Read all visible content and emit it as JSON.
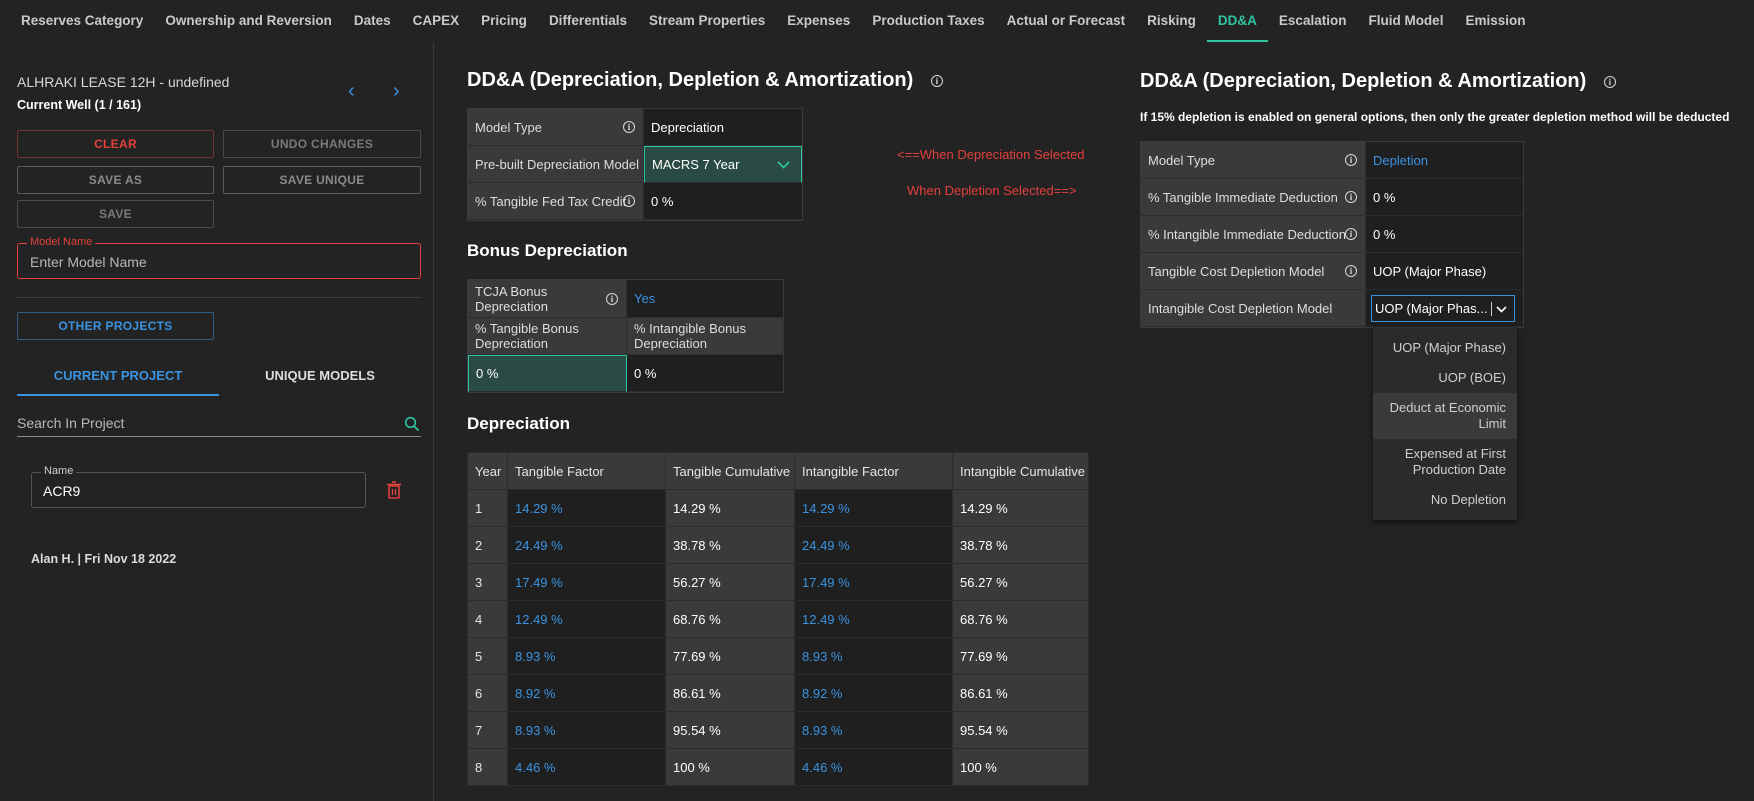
{
  "nav": {
    "tabs": [
      "Reserves Category",
      "Ownership and Reversion",
      "Dates",
      "CAPEX",
      "Pricing",
      "Differentials",
      "Stream Properties",
      "Expenses",
      "Production Taxes",
      "Actual or Forecast",
      "Risking",
      "DD&A",
      "Escalation",
      "Fluid Model",
      "Emission"
    ],
    "active": "DD&A"
  },
  "left": {
    "well_title": "ALHRAKI LEASE 12H - undefined",
    "current_well": "Current Well (1 / 161)",
    "buttons": {
      "clear": "CLEAR",
      "undo": "UNDO CHANGES",
      "save_as": "SAVE AS",
      "save_unique": "SAVE UNIQUE",
      "save": "SAVE",
      "other_projects": "OTHER PROJECTS"
    },
    "model_name_label": "Model Name",
    "model_name_placeholder": "Enter Model Name",
    "project_tabs": {
      "current": "CURRENT PROJECT",
      "unique": "UNIQUE MODELS"
    },
    "search_placeholder": "Search In Project",
    "item": {
      "name_label": "Name",
      "name": "ACR9",
      "byline": "Alan H. | Fri Nov 18 2022"
    }
  },
  "middle": {
    "title": "DD&A (Depreciation, Depletion & Amortization)",
    "model_type_label": "Model Type",
    "model_type_value": "Depreciation",
    "prebuilt_label": "Pre-built Depreciation Model",
    "prebuilt_value": "MACRS 7 Year",
    "fed_credit_label": "% Tangible Fed Tax Credit",
    "fed_credit_value": "0 %",
    "note_depreciation": "<==When Depreciation Selected",
    "note_depletion": "When Depletion Selected==>",
    "bonus_title": "Bonus Depreciation",
    "tcja_label": "TCJA Bonus Depreciation",
    "tcja_value": "Yes",
    "tangible_bonus_label": "% Tangible Bonus Depreciation",
    "intangible_bonus_label": "% Intangible Bonus Depreciation",
    "tangible_bonus_value": "0 %",
    "intangible_bonus_value": "0 %",
    "dep_title": "Depreciation",
    "dep_headers": [
      "Year",
      "Tangible Factor",
      "Tangible Cumulative",
      "Intangible Factor",
      "Intangible Cumulative"
    ],
    "dep_rows": [
      [
        "1",
        "14.29 %",
        "14.29 %",
        "14.29 %",
        "14.29 %"
      ],
      [
        "2",
        "24.49 %",
        "38.78 %",
        "24.49 %",
        "38.78 %"
      ],
      [
        "3",
        "17.49 %",
        "56.27 %",
        "17.49 %",
        "56.27 %"
      ],
      [
        "4",
        "12.49 %",
        "68.76 %",
        "12.49 %",
        "68.76 %"
      ],
      [
        "5",
        "8.93 %",
        "77.69 %",
        "8.93 %",
        "77.69 %"
      ],
      [
        "6",
        "8.92 %",
        "86.61 %",
        "8.92 %",
        "86.61 %"
      ],
      [
        "7",
        "8.93 %",
        "95.54 %",
        "8.93 %",
        "95.54 %"
      ],
      [
        "8",
        "4.46 %",
        "100 %",
        "4.46 %",
        "100 %"
      ]
    ]
  },
  "right": {
    "title": "DD&A (Depreciation, Depletion & Amortization)",
    "note": "If 15% depletion is enabled on general options, then only the greater depletion method will be deducted",
    "model_type_label": "Model Type",
    "model_type_value": "Depletion",
    "tangible_imm_label": "% Tangible Immediate Deduction",
    "tangible_imm_value": "0 %",
    "intangible_imm_label": "% Intangible Immediate Deduction",
    "intangible_imm_value": "0 %",
    "tangible_cost_label": "Tangible Cost Depletion Model",
    "tangible_cost_value": "UOP (Major Phase)",
    "intangible_cost_label": "Intangible Cost Depletion Model",
    "intangible_cost_value": "UOP (Major Phas...",
    "dropdown_options": [
      "UOP (Major Phase)",
      "UOP (BOE)",
      "Deduct at Economic Limit",
      "Expensed at First Production Date",
      "No Depletion"
    ]
  }
}
